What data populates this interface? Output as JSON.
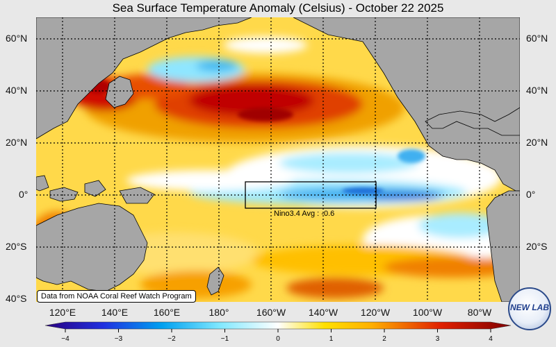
{
  "title": "Sea Surface Temperature Anomaly (Celsius) - October 22 2025",
  "lat_labels": [
    "60°N",
    "40°N",
    "20°N",
    "0°",
    "20°S",
    "40°S"
  ],
  "lon_labels": [
    "120°E",
    "140°E",
    "160°E",
    "180°",
    "160°W",
    "140°W",
    "120°W",
    "100°W",
    "80°W"
  ],
  "nino_label": "Nino3.4 Avg : -0.6",
  "credit": "Data from NOAA Coral Reef Watch Program",
  "colorbar": {
    "ticks": [
      "−4",
      "−3",
      "−2",
      "−1",
      "0",
      "1",
      "2",
      "3",
      "4"
    ],
    "min": -4,
    "max": 4
  },
  "logo_text": "NEW LAB",
  "colors": {
    "land": "#a6a6a6",
    "neutral": "#ffffff",
    "warm": "#f5c400",
    "hot": "#c00000",
    "cool": "#5bd8f8",
    "cold": "#1f6fd8"
  }
}
